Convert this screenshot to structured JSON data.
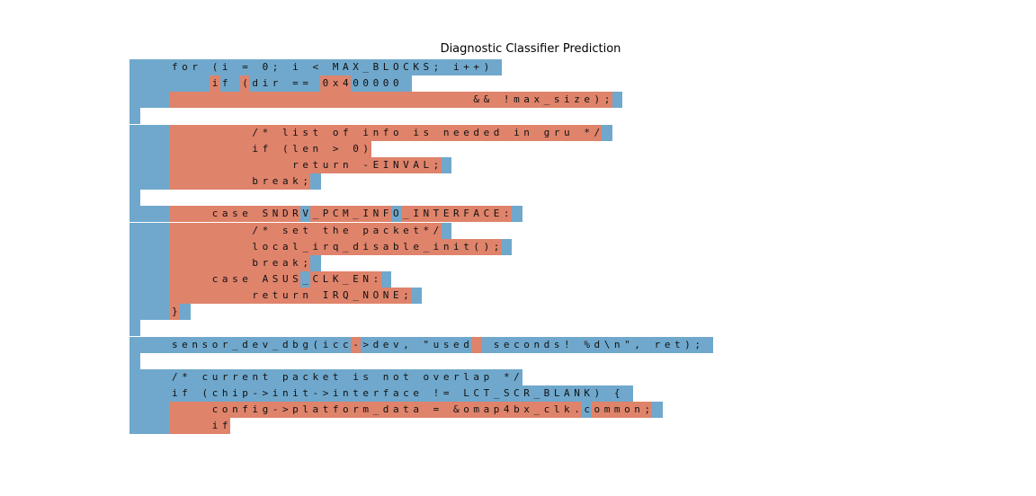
{
  "chart_data": {
    "type": "heatmap",
    "title": "Diagnostic Classifier Prediction",
    "classes": [
      {
        "name": "blue",
        "color": "#6fa8cc"
      },
      {
        "name": "red",
        "color": "#df836b"
      }
    ],
    "lines": [
      {
        "tokens": [
          [
            "    for (i = 0; i < MAX_BLOCKS; i++)",
            "b"
          ],
          [
            " ",
            "b"
          ]
        ]
      },
      {
        "tokens": [
          [
            "        ",
            "b"
          ],
          [
            "i",
            "r"
          ],
          [
            "f ",
            "b"
          ],
          [
            "(",
            "r"
          ],
          [
            "dir == ",
            "b"
          ],
          [
            "0x4",
            "r"
          ],
          [
            "00000 ",
            "b"
          ]
        ]
      },
      {
        "tokens": [
          [
            "    ",
            "b"
          ],
          [
            "                              && !max_size);",
            "r"
          ],
          [
            " ",
            "b"
          ]
        ]
      },
      {
        "tokens": [
          [
            " ",
            "b"
          ]
        ]
      },
      {
        "tokens": [
          [
            "    ",
            "b"
          ],
          [
            "        /* list of info is needed in gru */",
            "r"
          ],
          [
            " ",
            "b"
          ]
        ]
      },
      {
        "tokens": [
          [
            "    ",
            "b"
          ],
          [
            "        if (len > 0)",
            "r"
          ]
        ]
      },
      {
        "tokens": [
          [
            "    ",
            "b"
          ],
          [
            "            return -EINVAL;",
            "r"
          ],
          [
            " ",
            "b"
          ]
        ]
      },
      {
        "tokens": [
          [
            "    ",
            "b"
          ],
          [
            "        break;",
            "r"
          ],
          [
            " ",
            "b"
          ]
        ]
      },
      {
        "tokens": [
          [
            " ",
            "b"
          ]
        ]
      },
      {
        "tokens": [
          [
            "    ",
            "b"
          ],
          [
            "    case SNDR",
            "r"
          ],
          [
            "V",
            "b"
          ],
          [
            "_PCM_INF",
            "r"
          ],
          [
            "O",
            "b"
          ],
          [
            "_INTERFACE:",
            "r"
          ],
          [
            " ",
            "b"
          ]
        ]
      },
      {
        "tokens": [
          [
            "    ",
            "b"
          ],
          [
            "        /* set the packet*/",
            "r"
          ],
          [
            " ",
            "b"
          ]
        ]
      },
      {
        "tokens": [
          [
            "    ",
            "b"
          ],
          [
            "        local_irq_disable_init();",
            "r"
          ],
          [
            " ",
            "b"
          ]
        ]
      },
      {
        "tokens": [
          [
            "    ",
            "b"
          ],
          [
            "        break;",
            "r"
          ],
          [
            " ",
            "b"
          ]
        ]
      },
      {
        "tokens": [
          [
            "    ",
            "b"
          ],
          [
            "    case ASUS",
            "r"
          ],
          [
            "_",
            "b"
          ],
          [
            "CLK_EN:",
            "r"
          ],
          [
            " ",
            "b"
          ]
        ]
      },
      {
        "tokens": [
          [
            "    ",
            "b"
          ],
          [
            "        return IRQ_NONE;",
            "r"
          ],
          [
            " ",
            "b"
          ]
        ]
      },
      {
        "tokens": [
          [
            "    ",
            "b"
          ],
          [
            "}",
            "r"
          ],
          [
            " ",
            "b"
          ]
        ]
      },
      {
        "tokens": [
          [
            " ",
            "b"
          ]
        ]
      },
      {
        "tokens": [
          [
            "    sensor_dev_dbg(icc",
            "b"
          ],
          [
            "-",
            "r"
          ],
          [
            ">dev, \"used",
            "b"
          ],
          [
            " ",
            "r"
          ],
          [
            " seconds! %d\\n\", ret);",
            "b"
          ],
          [
            " ",
            "b"
          ]
        ]
      },
      {
        "tokens": [
          [
            " ",
            "b"
          ]
        ]
      },
      {
        "tokens": [
          [
            "    /* current packet is not overlap */",
            "b"
          ]
        ]
      },
      {
        "tokens": [
          [
            "    if (chip->init->interface != LCT_SCR_BLANK) {",
            "b"
          ],
          [
            " ",
            "b"
          ]
        ]
      },
      {
        "tokens": [
          [
            "    ",
            "b"
          ],
          [
            "    config->platform_data = &omap4bx_clk.",
            "r"
          ],
          [
            "c",
            "b"
          ],
          [
            "ommon;",
            "r"
          ],
          [
            " ",
            "b"
          ]
        ]
      },
      {
        "tokens": [
          [
            "    ",
            "b"
          ],
          [
            "    if",
            "r"
          ]
        ]
      }
    ]
  }
}
